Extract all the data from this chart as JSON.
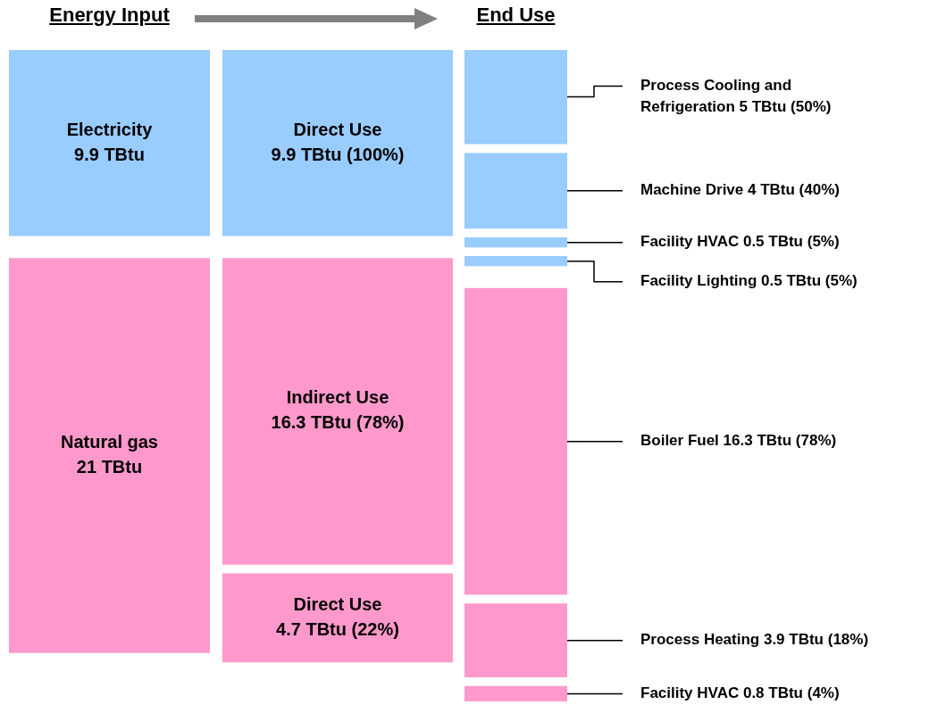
{
  "chart_data": [
    {
      "type": "other",
      "title": "Energy Input",
      "categories": [
        "Electricity",
        "Natural gas"
      ],
      "values": [
        9.9,
        21
      ],
      "value_labels": [
        "9.9 TBtu",
        "21 TBtu"
      ],
      "colors": [
        "#99ccff",
        "#ff99cc"
      ]
    },
    {
      "type": "other",
      "categories": [
        "Direct Use",
        "Indirect Use",
        "Direct Use"
      ],
      "values": [
        9.9,
        16.3,
        4.7
      ],
      "value_labels": [
        "9.9 TBtu (100%)",
        "16.3 TBtu (78%)",
        "4.7 TBtu (22%)"
      ],
      "colors": [
        "#99ccff",
        "#ff99cc",
        "#ff99cc"
      ]
    },
    {
      "type": "other",
      "title": "End Use",
      "categories": [
        "Process Cooling and Refrigeration",
        "Machine Drive",
        "Facility HVAC",
        "Facility Lighting",
        "Boiler Fuel",
        "Process Heating",
        "Facility HVAC"
      ],
      "values": [
        5,
        4,
        0.5,
        0.5,
        16.3,
        3.9,
        0.8
      ],
      "value_labels": [
        "5 TBtu (50%)",
        "4 TBtu (40%)",
        "0.5 TBtu (5%)",
        "0.5 TBtu (5%)",
        "16.3 TBtu (78%)",
        "3.9 TBtu (18%)",
        "0.8 TBtu (4%)"
      ],
      "colors": [
        "#99ccff",
        "#99ccff",
        "#99ccff",
        "#99ccff",
        "#ff99cc",
        "#ff99cc",
        "#ff99cc"
      ]
    }
  ]
}
